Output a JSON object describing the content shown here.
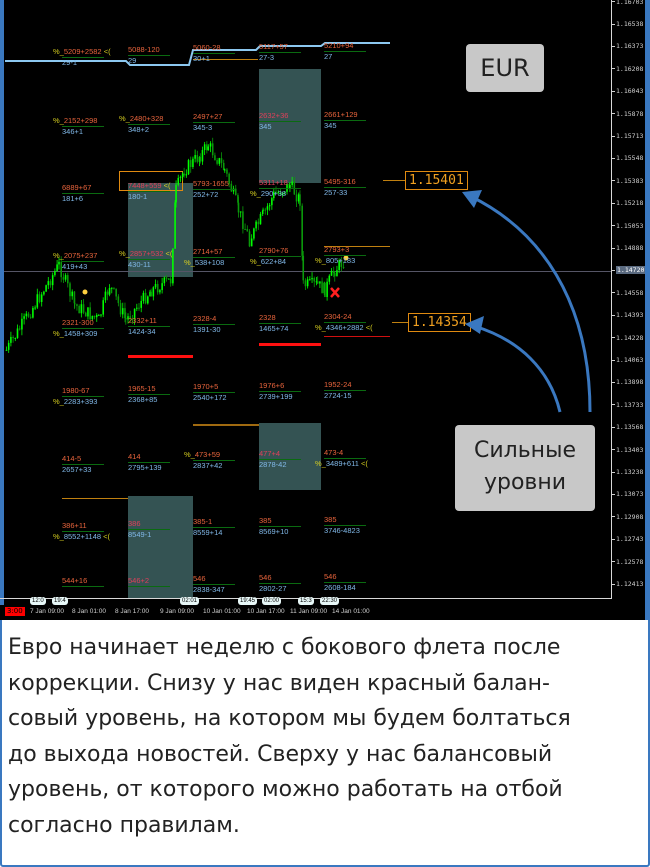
{
  "instrument_label": "EUR",
  "callout_label": [
    "Сильные",
    "уровни"
  ],
  "highlighted_levels": [
    "1.15401",
    "1.14354"
  ],
  "current_price": "1.14720",
  "current_time_label": "3:00",
  "colors": {
    "background": "#000000",
    "candle_up": "#00ff00",
    "candle_dn": "#0a9a0a",
    "level_top_text": "#e8643c",
    "level_bottom_text": "#80b8e8",
    "percent_marker": "#d8d020",
    "balance_line_red": "#ff1010",
    "balance_line_orange": "#c08010",
    "highlight_box": "#e08a10",
    "arrow": "#3a78c0",
    "frame": "#3a78c0"
  },
  "events": [
    "12:0",
    "19:4",
    "02:01",
    "19:45",
    "02:00",
    "15:3",
    "22:30"
  ],
  "columns": [
    [
      {
        "top": {
          "pre": "%_",
          "t": "5209+2582",
          "suf": "<("
        },
        "bot": {
          "t": "29-1"
        }
      },
      {
        "top": {
          "pre": "%_",
          "t": "2152+298"
        },
        "bot": {
          "t": "346+1"
        }
      },
      {
        "top": {
          "t": "6889+67"
        },
        "bot": {
          "t": "181+6"
        }
      },
      {
        "top": {
          "pre": "%_",
          "t": "2075+237"
        },
        "bot": {
          "t": "419+43"
        }
      },
      {
        "top": {
          "t": "2321-300"
        },
        "bot": {
          "pre": "%_",
          "t": "1458+309"
        }
      },
      {
        "top": {
          "t": "1980-67"
        },
        "bot": {
          "pre": "%_",
          "t": "2283+393"
        }
      },
      {
        "top": {
          "t": "414-5"
        },
        "bot": {
          "t": "2657+33"
        }
      },
      {
        "top": {
          "t": "386+11"
        },
        "bot": {
          "pre": "%_",
          "t": "8552+1148",
          "suf": "<("
        }
      },
      {
        "top": {
          "t": "544+16"
        },
        "bot": null
      }
    ],
    [
      {
        "top": {
          "t": "5088-120"
        },
        "bot": {
          "t": "29"
        }
      },
      {
        "top": {
          "pre": "%_",
          "t": "2480+328"
        },
        "bot": {
          "t": "348+2"
        }
      },
      {
        "top": {
          "t": "7448+559",
          "suf": "<(",
          "red": true
        },
        "bot": {
          "t": "180-1"
        }
      },
      {
        "top": {
          "pre": "%_",
          "t": "2857+532",
          "suf": "<(",
          "red": true
        },
        "bot": {
          "t": "430-11"
        }
      },
      {
        "top": {
          "t": "2332+11"
        },
        "bot": {
          "t": "1424-34"
        }
      },
      {
        "top": {
          "t": "1965-15"
        },
        "bot": {
          "t": "2368+85"
        }
      },
      {
        "top": {
          "t": "414"
        },
        "bot": {
          "t": "2795+139"
        }
      },
      {
        "top": {
          "t": "386",
          "red": true
        },
        "bot": {
          "t": "8549-1"
        }
      },
      {
        "top": {
          "t": "546+2",
          "red": true
        },
        "bot": null
      }
    ],
    [
      {
        "top": {
          "t": "5060-28"
        },
        "bot": {
          "t": "30+1"
        }
      },
      {
        "top": {
          "t": "2497+27"
        },
        "bot": {
          "t": "345-3"
        }
      },
      {
        "top": {
          "t": "5793-1655"
        },
        "bot": {
          "t": "252+72"
        }
      },
      {
        "top": {
          "t": "2714+57"
        },
        "bot": {
          "pre": "%_",
          "t": "538+108"
        }
      },
      {
        "top": {
          "t": "2328-4"
        },
        "bot": {
          "t": "1391-30"
        }
      },
      {
        "top": {
          "t": "1970+5"
        },
        "bot": {
          "t": "2540+172"
        }
      },
      {
        "top": {
          "pre": "%_",
          "t": "473+59"
        },
        "bot": {
          "t": "2837+42"
        }
      },
      {
        "top": {
          "t": "385-1"
        },
        "bot": {
          "t": "8559+14"
        }
      },
      {
        "top": {
          "t": "546"
        },
        "bot": {
          "t": "2838-347"
        }
      }
    ],
    [
      {
        "top": {
          "t": "5117+57"
        },
        "bot": {
          "t": "27-3"
        }
      },
      {
        "top": {
          "t": "2632+36",
          "red": true
        },
        "bot": {
          "t": "345"
        }
      },
      {
        "top": {
          "t": "5311+18",
          "red": true
        },
        "bot": {
          "pre": "%_",
          "t": "290+38"
        }
      },
      {
        "top": {
          "t": "2790+76"
        },
        "bot": {
          "pre": "%_",
          "t": "622+84"
        }
      },
      {
        "top": {
          "t": "2328"
        },
        "bot": {
          "t": "1465+74"
        }
      },
      {
        "top": {
          "t": "1976+6"
        },
        "bot": {
          "t": "2739+199"
        }
      },
      {
        "top": {
          "t": "477+4",
          "red": true
        },
        "bot": {
          "t": "2878-42"
        }
      },
      {
        "top": {
          "t": "385"
        },
        "bot": {
          "t": "8569+10"
        }
      },
      {
        "top": {
          "t": "546"
        },
        "bot": {
          "t": "2802-27"
        }
      }
    ],
    [
      {
        "top": {
          "t": "5210+94"
        },
        "bot": {
          "t": "27"
        }
      },
      {
        "top": {
          "t": "2661+129"
        },
        "bot": {
          "t": "345"
        }
      },
      {
        "top": {
          "t": "5495-316"
        },
        "bot": {
          "t": "257-33"
        }
      },
      {
        "top": {
          "t": "2793+3"
        },
        "bot": {
          "pre": "%_",
          "t": "805+183"
        }
      },
      {
        "top": {
          "t": "2304-24"
        },
        "bot": {
          "pre": "%_",
          "t": "4346+2882",
          "suf": "<("
        }
      },
      {
        "top": {
          "t": "1952-24"
        },
        "bot": {
          "t": "2724-15"
        }
      },
      {
        "top": {
          "t": "473-4"
        },
        "bot": {
          "pre": "%_",
          "t": "3489+611",
          "suf": "<("
        }
      },
      {
        "top": {
          "t": "385"
        },
        "bot": {
          "t": "3746-4823"
        }
      },
      {
        "top": {
          "t": "546"
        },
        "bot": {
          "t": "2608-184"
        }
      }
    ]
  ],
  "chart_data": {
    "type": "candlestick",
    "title": "",
    "y_ticks": [
      "1.16703",
      "1.16538",
      "1.16373",
      "1.16208",
      "1.16043",
      "1.15878",
      "1.15713",
      "1.15548",
      "1.15383",
      "1.15218",
      "1.15053",
      "1.14888",
      "1.14558",
      "1.14393",
      "1.14228",
      "1.14063",
      "1.13898",
      "1.13733",
      "1.13568",
      "1.13403",
      "1.13238",
      "1.13073",
      "1.12908",
      "1.12743",
      "1.12578",
      "1.12413"
    ],
    "ylim": [
      1.1241,
      1.167
    ],
    "x_ticks": [
      "7 Jan 09:00",
      "8 Jan 01:00",
      "8 Jan 17:00",
      "9 Jan 09:00",
      "10 Jan 01:00",
      "10 Jan 17:00",
      "11 Jan 09:00",
      "14 Jan 01:00"
    ],
    "grid": false,
    "price_path": [
      [
        "6 Jan 21:00",
        1.14144
      ],
      [
        "7 Jan 17:00",
        1.1477
      ],
      [
        "7 Jan 23:00",
        1.14476
      ],
      [
        "8 Jan 08:00",
        1.14365
      ],
      [
        "8 Jan 12:00",
        1.14623
      ],
      [
        "8 Jan 18:00",
        1.14365
      ],
      [
        "9 Jan 03:00",
        1.14586
      ],
      [
        "9 Jan 10:00",
        1.1466
      ],
      [
        "9 Jan 12:00",
        1.15323
      ],
      [
        "9 Jan 15:00",
        1.1547
      ],
      [
        "9 Jan 21:00",
        1.1558
      ],
      [
        "10 Jan 00:00",
        1.15654
      ],
      [
        "10 Jan 06:00",
        1.1547
      ],
      [
        "10 Jan 11:00",
        1.15175
      ],
      [
        "10 Jan 15:00",
        1.14954
      ],
      [
        "10 Jan 20:00",
        1.15138
      ],
      [
        "11 Jan 00:00",
        1.15286
      ],
      [
        "11 Jan 06:00",
        1.15359
      ],
      [
        "11 Jan 12:00",
        1.15249
      ],
      [
        "11 Jan 17:00",
        1.14623
      ],
      [
        "12 Jan 15:00",
        1.14623
      ],
      [
        "13 Jan 02:00",
        1.14586
      ],
      [
        "13 Jan 17:00",
        1.14733
      ],
      [
        "14 Jan 08:00",
        1.14807
      ]
    ]
  },
  "description_lines": [
    "Евро начинает неделю с бокового флета  после",
    "коррекции. Снизу у нас виден красный балан-",
    "совый уровень, на котором мы будем болтаться",
    "до выхода новостей. Сверху у нас балансовый",
    "уровень, от которого можно работать на отбой",
    "согласно правилам."
  ]
}
